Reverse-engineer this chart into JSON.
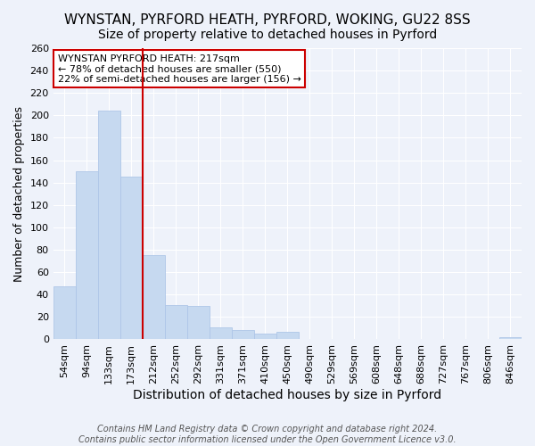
{
  "title": "WYNSTAN, PYRFORD HEATH, PYRFORD, WOKING, GU22 8SS",
  "subtitle": "Size of property relative to detached houses in Pyrford",
  "xlabel": "Distribution of detached houses by size in Pyrford",
  "ylabel": "Number of detached properties",
  "categories": [
    "54sqm",
    "94sqm",
    "133sqm",
    "173sqm",
    "212sqm",
    "252sqm",
    "292sqm",
    "331sqm",
    "371sqm",
    "410sqm",
    "450sqm",
    "490sqm",
    "529sqm",
    "569sqm",
    "608sqm",
    "648sqm",
    "688sqm",
    "727sqm",
    "767sqm",
    "806sqm",
    "846sqm"
  ],
  "values": [
    47,
    150,
    204,
    145,
    75,
    31,
    30,
    11,
    8,
    5,
    7,
    0,
    0,
    0,
    0,
    0,
    0,
    0,
    0,
    0,
    2
  ],
  "bar_color": "#c6d9f0",
  "bar_edge_color": "#aec6e8",
  "vline_color": "#cc0000",
  "vline_x": 4.5,
  "annotation_title": "WYNSTAN PYRFORD HEATH: 217sqm",
  "annotation_line1": "← 78% of detached houses are smaller (550)",
  "annotation_line2": "22% of semi-detached houses are larger (156) →",
  "annotation_box_color": "#ffffff",
  "annotation_box_edge": "#cc0000",
  "ylim": [
    0,
    260
  ],
  "yticks": [
    0,
    20,
    40,
    60,
    80,
    100,
    120,
    140,
    160,
    180,
    200,
    220,
    240,
    260
  ],
  "footer_line1": "Contains HM Land Registry data © Crown copyright and database right 2024.",
  "footer_line2": "Contains public sector information licensed under the Open Government Licence v3.0.",
  "bg_color": "#eef2fa",
  "grid_color": "#ffffff",
  "title_fontsize": 11,
  "subtitle_fontsize": 10,
  "xlabel_fontsize": 10,
  "ylabel_fontsize": 9,
  "tick_fontsize": 8,
  "annotation_fontsize": 8,
  "footer_fontsize": 7
}
